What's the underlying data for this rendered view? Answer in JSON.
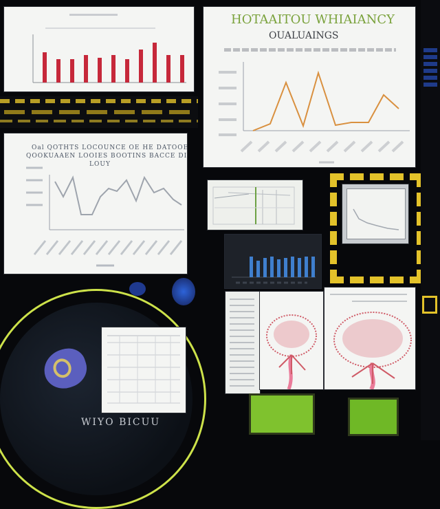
{
  "colors": {
    "background": "#07080b",
    "red": "#c6283a",
    "orange": "#d9903f",
    "gray": "#9ea4ad",
    "blue": "#3f7fce",
    "yellow": "#e3c22a",
    "lime": "#cde24a",
    "coral": "#cf5a66",
    "pink": "#ea7c9a"
  },
  "top_right": {
    "title": "HOTAAITOU WHIAIANCY",
    "subtitle": "OUALUAINGS"
  },
  "middle_left": {
    "title_line1": "Oal QOTHTS LOCOUNCE OE HE DATOOE",
    "title_line2": "QOOKUAAEN  LOOIES  BOOTINS  BACCE  DI",
    "title_line3": "LOUY"
  },
  "bottom_caption": "WIYO BICUU"
}
